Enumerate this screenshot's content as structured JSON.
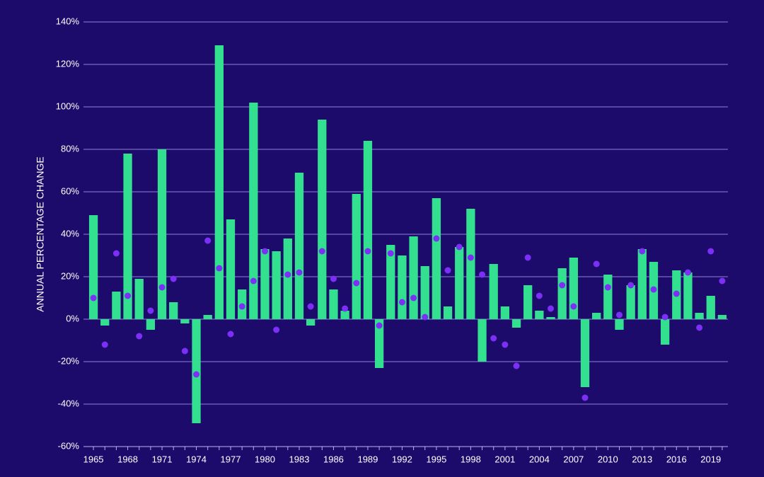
{
  "chart_data": {
    "type": "bar",
    "y_label": "ANNUAL PERCENTAGE CHANGE",
    "categories": [
      "1965",
      null,
      null,
      "1968",
      null,
      null,
      "1971",
      null,
      null,
      "1974",
      null,
      null,
      "1977",
      null,
      null,
      "1980",
      null,
      null,
      "1983",
      null,
      null,
      "1986",
      null,
      null,
      "1989",
      null,
      null,
      "1992",
      null,
      null,
      "1995",
      null,
      null,
      "1998",
      null,
      null,
      "2001",
      null,
      null,
      "2004",
      null,
      null,
      "2007",
      null,
      null,
      "2010",
      null,
      null,
      "2013",
      null,
      null,
      "2016",
      null,
      null,
      "2019",
      null
    ],
    "series": [
      {
        "type": "bar",
        "color": "#33e08f",
        "values": [
          49,
          -3,
          13,
          78,
          19,
          -5,
          80,
          8,
          -2,
          -49,
          2,
          129,
          47,
          14,
          102,
          33,
          32,
          38,
          69,
          -3,
          94,
          14,
          4,
          59,
          84,
          -23,
          35,
          30,
          39,
          25,
          57,
          6,
          34,
          52,
          -20,
          26,
          6,
          -4,
          16,
          4,
          1,
          24,
          29,
          -32,
          3,
          21,
          -5,
          16,
          33,
          27,
          -12,
          23,
          22,
          3,
          11,
          2
        ]
      },
      {
        "type": "scatter",
        "color": "#7b2ff7",
        "values": [
          10,
          -12,
          31,
          11,
          -8,
          4,
          15,
          19,
          -15,
          -26,
          37,
          24,
          -7,
          6,
          18,
          32,
          -5,
          21,
          22,
          6,
          32,
          19,
          5,
          17,
          32,
          -3,
          31,
          8,
          10,
          1,
          38,
          23,
          34,
          29,
          21,
          -9,
          -12,
          -22,
          29,
          11,
          5,
          16,
          6,
          -37,
          26,
          15,
          2,
          16,
          32,
          14,
          1,
          12,
          22,
          -4,
          32,
          18
        ]
      }
    ],
    "ylim": [
      -60,
      140
    ],
    "yticks": [
      {
        "value": -60,
        "label": "-60%"
      },
      {
        "value": -40,
        "label": "-40%"
      },
      {
        "value": -20,
        "label": "-20%"
      },
      {
        "value": 0,
        "label": "0%"
      },
      {
        "value": 20,
        "label": "20%"
      },
      {
        "value": 40,
        "label": "40%"
      },
      {
        "value": 60,
        "label": "60%"
      },
      {
        "value": 80,
        "label": "80%"
      },
      {
        "value": 100,
        "label": "100%"
      },
      {
        "value": 120,
        "label": "120%"
      },
      {
        "value": 140,
        "label": "140%"
      }
    ],
    "grid": true
  }
}
